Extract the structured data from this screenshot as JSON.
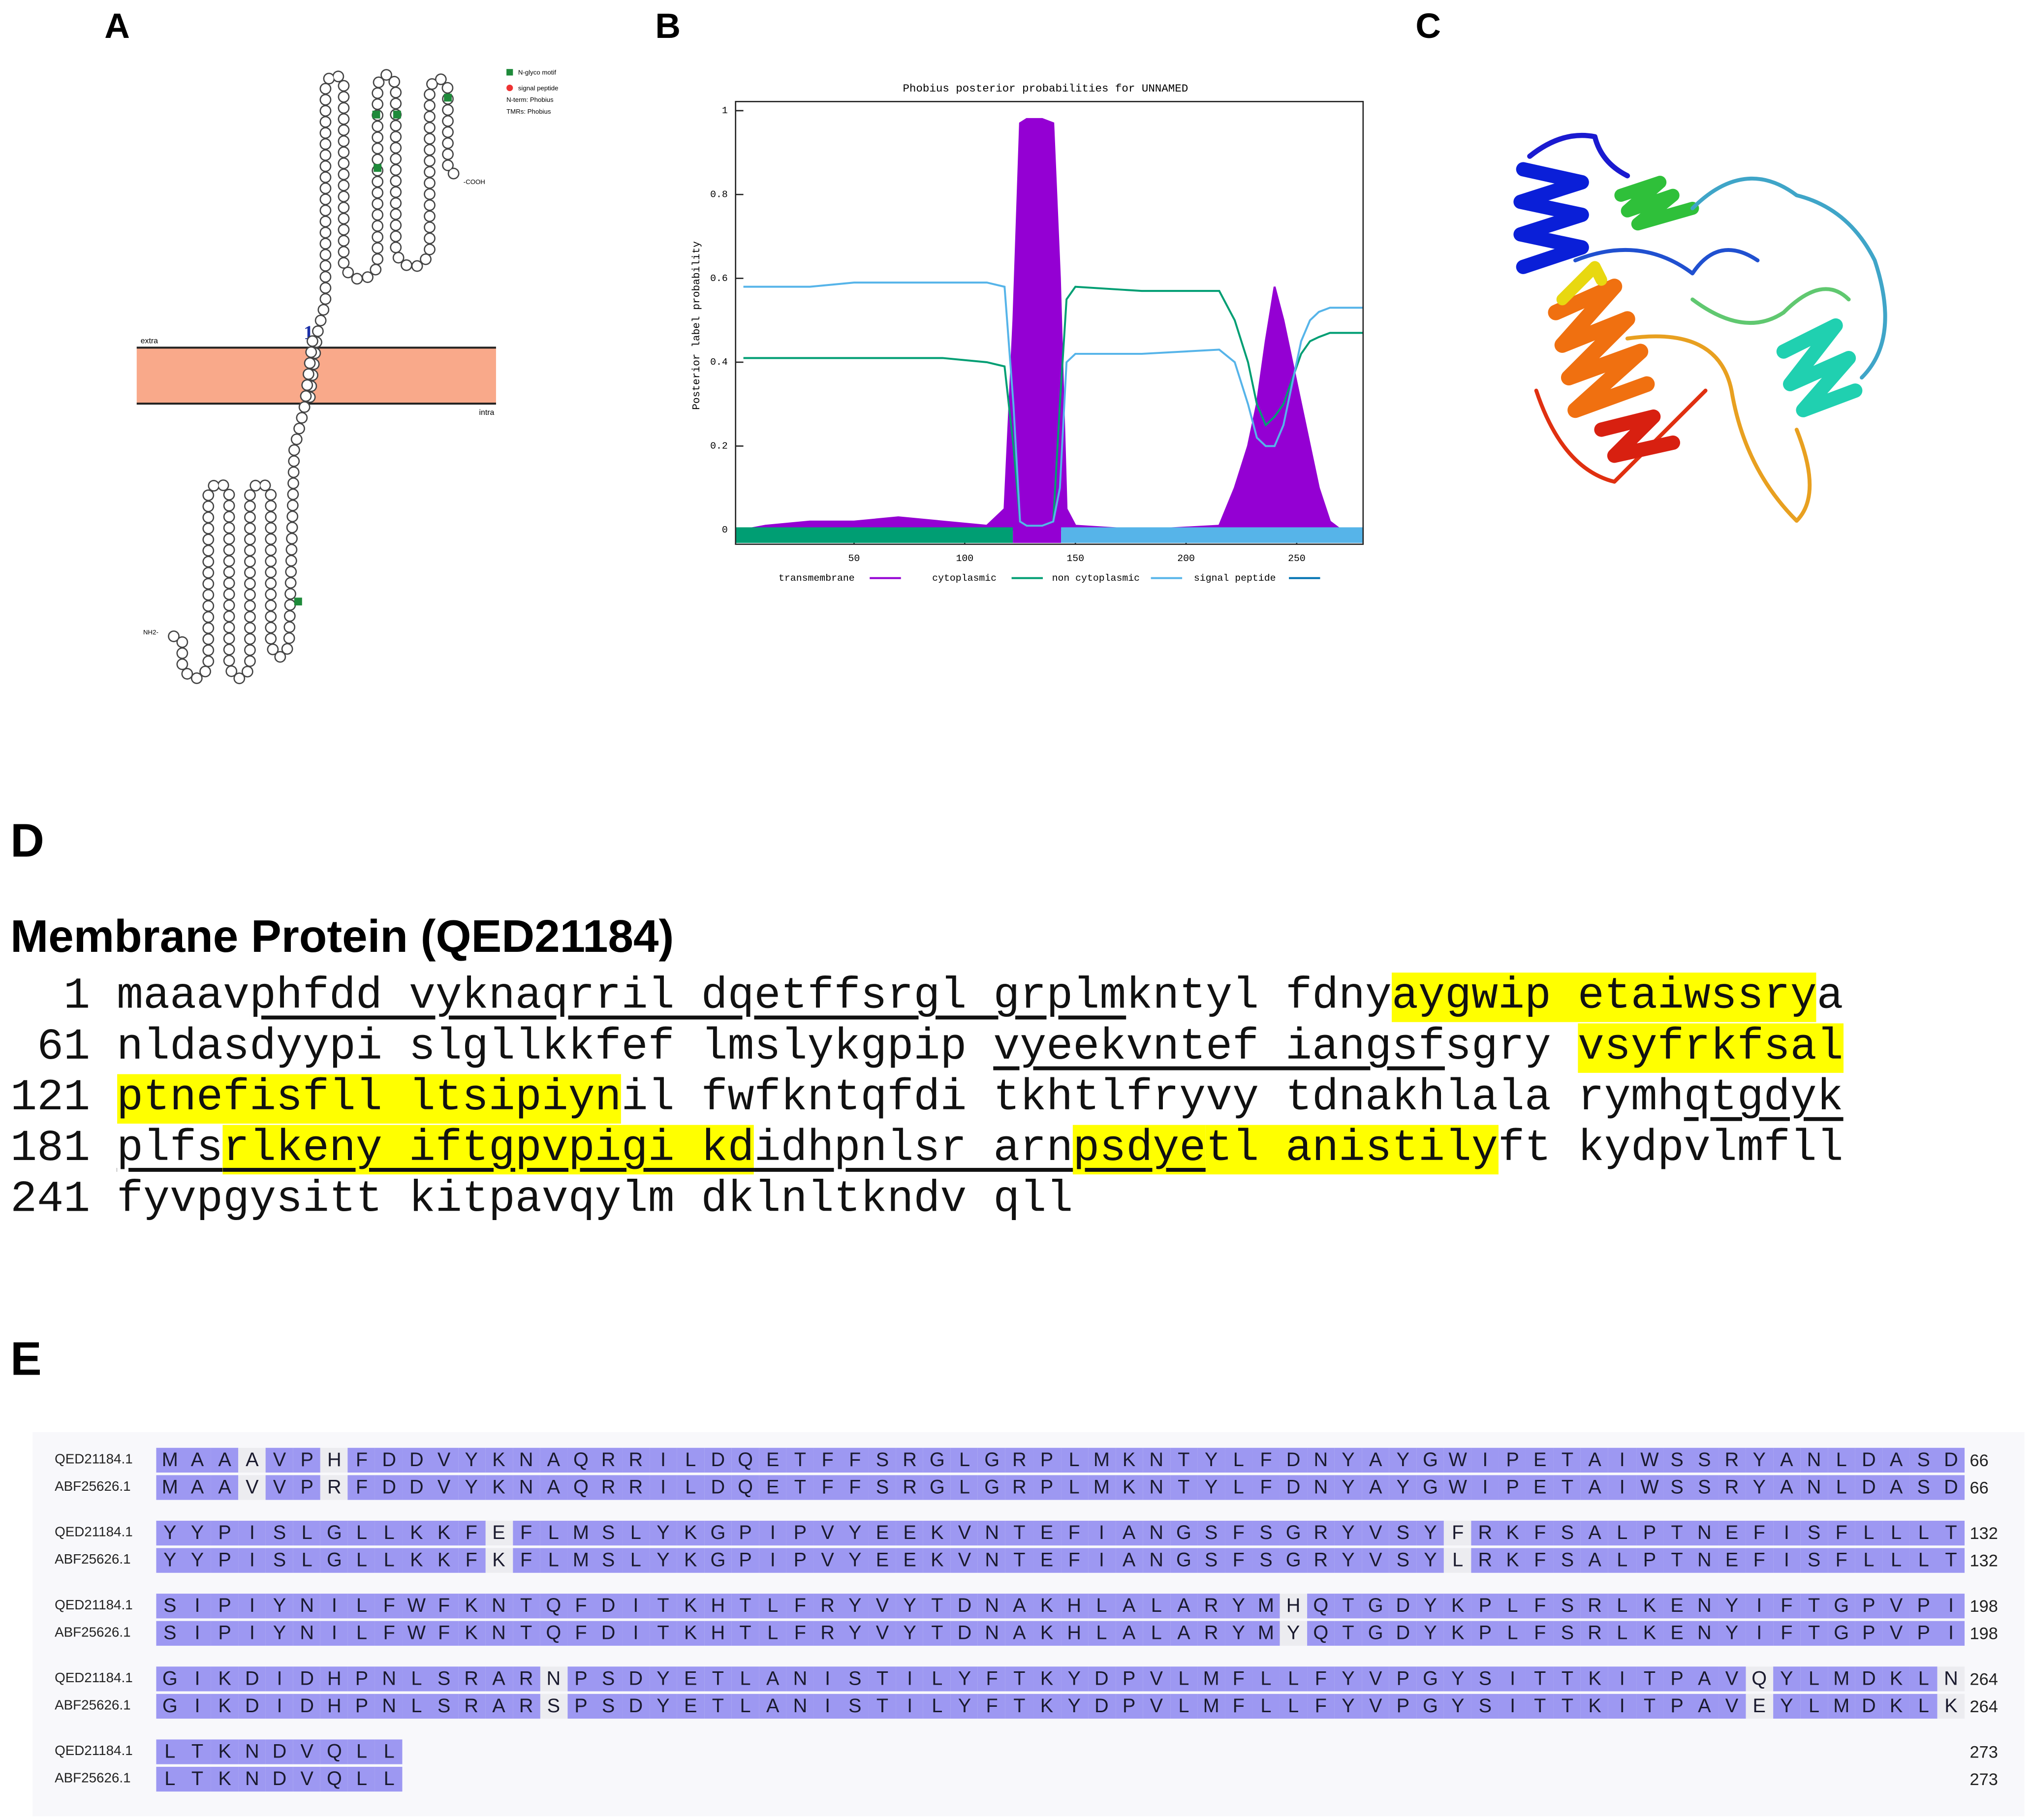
{
  "panel_labels": [
    "A",
    "B",
    "C",
    "D",
    "E"
  ],
  "topology": {
    "legend": [
      "N-glyco motif",
      "signal peptide",
      "N-term: Phobius",
      "TMRs: Phobius"
    ],
    "extra": "extra",
    "intra": "intra",
    "tm_number": 1,
    "n_term": "NH2-",
    "c_term": "-COOH"
  },
  "chart_data": {
    "type": "line",
    "title": "Phobius posterior probabilities for UNNAMED",
    "y_label": "Posterior label probability",
    "x": [
      0,
      10,
      30,
      50,
      70,
      90,
      110,
      118,
      122,
      125,
      128,
      135,
      140,
      143,
      146,
      150,
      180,
      215,
      222,
      228,
      232,
      236,
      240,
      244,
      248,
      252,
      256,
      260,
      265,
      270,
      280
    ],
    "series": [
      {
        "name": "transmembrane",
        "color": "#9400d3",
        "area": true,
        "values": [
          0,
          0.01,
          0.02,
          0.02,
          0.03,
          0.02,
          0.01,
          0.05,
          0.5,
          0.97,
          0.98,
          0.98,
          0.97,
          0.6,
          0.05,
          0.01,
          0,
          0.01,
          0.1,
          0.2,
          0.3,
          0.45,
          0.58,
          0.5,
          0.4,
          0.3,
          0.2,
          0.1,
          0.02,
          0,
          0
        ]
      },
      {
        "name": "cytoplasmic",
        "color": "#009e73",
        "area": false,
        "values": [
          0.41,
          0.41,
          0.41,
          0.41,
          0.41,
          0.41,
          0.4,
          0.39,
          0.2,
          0.02,
          0.01,
          0.01,
          0.02,
          0.3,
          0.55,
          0.58,
          0.57,
          0.57,
          0.5,
          0.4,
          0.3,
          0.25,
          0.27,
          0.3,
          0.36,
          0.42,
          0.45,
          0.46,
          0.47,
          0.47,
          0.47
        ]
      },
      {
        "name": "non cytoplasmic",
        "color": "#56b4e9",
        "area": false,
        "values": [
          0.58,
          0.58,
          0.58,
          0.59,
          0.59,
          0.59,
          0.59,
          0.58,
          0.3,
          0.02,
          0.01,
          0.01,
          0.02,
          0.1,
          0.4,
          0.42,
          0.42,
          0.43,
          0.4,
          0.3,
          0.22,
          0.2,
          0.2,
          0.25,
          0.35,
          0.45,
          0.5,
          0.52,
          0.53,
          0.53,
          0.53
        ]
      },
      {
        "name": "signal peptide",
        "color": "#0072b2",
        "area": false,
        "values": [
          0,
          0,
          0,
          0,
          0,
          0,
          0,
          0,
          0,
          0,
          0,
          0,
          0,
          0,
          0,
          0,
          0,
          0,
          0,
          0,
          0,
          0,
          0,
          0,
          0,
          0,
          0,
          0,
          0,
          0,
          0
        ]
      }
    ],
    "xlim": [
      0,
      280
    ],
    "xticks": [
      50,
      100,
      150,
      200,
      250
    ],
    "ylim": [
      0,
      1
    ],
    "yticks": [
      0,
      0.2,
      0.4,
      0.6,
      0.8,
      1
    ]
  },
  "sequence": {
    "title": "Membrane Protein (QED21184)",
    "lines": [
      {
        "start": 1,
        "segments": [
          {
            "text": "maaav",
            "style": "plain"
          },
          {
            "text": "phfdd vyknaqrril dqetffsrgl grplm",
            "style": "underline"
          },
          {
            "text": "kntyl fdny",
            "style": "plain"
          },
          {
            "text": "aygwip etaiwssry",
            "style": "highlight"
          },
          {
            "text": "a",
            "style": "plain"
          }
        ]
      },
      {
        "start": 61,
        "segments": [
          {
            "text": "nldasdyypi slgllkkfef lmslykgpip ",
            "style": "plain"
          },
          {
            "text": "vyeekvntef iangsf",
            "style": "underline"
          },
          {
            "text": "sgry ",
            "style": "plain"
          },
          {
            "text": "vsyfrkfsal",
            "style": "highlight"
          }
        ]
      },
      {
        "start": 121,
        "segments": [
          {
            "text": "ptnefisfll ltsipiyn",
            "style": "highlight"
          },
          {
            "text": "il fwfkntqfdi tkhtlfryvy tdnakhlala rymh",
            "style": "plain"
          },
          {
            "text": "qtgdyk",
            "style": "underline"
          }
        ]
      },
      {
        "start": 181,
        "segments": [
          {
            "text": "plfs",
            "style": "underline"
          },
          {
            "text": "rlkeny iftgpvpigi kd",
            "style": "highlight-underline"
          },
          {
            "text": "idhpnlsr arn",
            "style": "underline"
          },
          {
            "text": "psdye",
            "style": "highlight-underline"
          },
          {
            "text": "tl anistily",
            "style": "highlight"
          },
          {
            "text": "ft kydpvlmfll",
            "style": "plain"
          }
        ]
      },
      {
        "start": 241,
        "segments": [
          {
            "text": "fyvpgysitt kitpavqylm dklnltkndv qll",
            "style": "plain"
          }
        ]
      }
    ]
  },
  "alignment": {
    "names": [
      "QED21184.1",
      "ABF25626.1"
    ],
    "blocks": [
      {
        "rows": [
          "MAAAVPHFDDVYKNAQRRILDQETFFSRGLGRPLMKNTYLFDNYAYGWIPETAIWSSRYANLDASD",
          "MAAVVPRFDDVYKNAQRRILDQETFFSRGLGRPLMKNTYLFDNYAYGWIPETAIWSSRYANLDASD"
        ],
        "end": 66
      },
      {
        "rows": [
          "YYPISLGLLKKFEFLMSLYKGPIPVYEEKVNTEFIANGSFSGRYVSYFRKFSALPTNEFISFLLLT",
          "YYPISLGLLKKFKFLMSLYKGPIPVYEEKVNTEFIANGSFSGRYVSYLRKFSALPTNEFISFLLLT"
        ],
        "end": 132
      },
      {
        "rows": [
          "SIPIYNILFWFKNTQFDITKHTLFRYVYTDNAKHLALARYMHQTGDYKPLFSRLKENYIFTGPVPI",
          "SIPIYNILFWFKNTQFDITKHTLFRYVYTDNAKHLALARYMYQTGDYKPLFSRLKENYIFTGPVPI"
        ],
        "end": 198
      },
      {
        "rows": [
          "GIKDIDHPNLSRARNPSDYETLANISTILYFTKYDPVLMFLLFYVPGYSITTKITPAVQYLMDKLN",
          "GIKDIDHPNLSRARSPSDYETLANISTILYFTKYDPVLMFLLFYVPGYSITTKITPAVEYLMDKLK"
        ],
        "end": 264
      },
      {
        "rows": [
          "LTKNDVQLL",
          "LTKNDVQLL"
        ],
        "end": 273
      }
    ]
  }
}
